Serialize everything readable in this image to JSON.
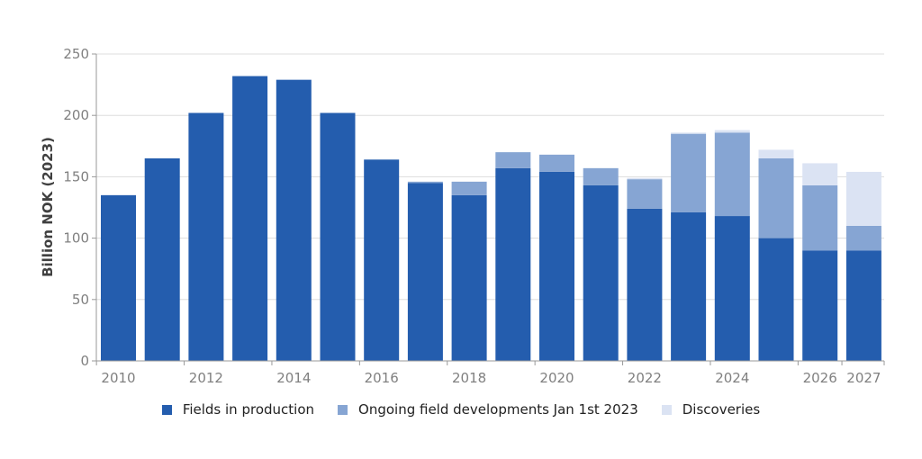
{
  "chart_data": {
    "type": "bar",
    "stacked": true,
    "title": "",
    "xlabel": "",
    "ylabel": "Billion NOK (2023)",
    "ylim": [
      0,
      250
    ],
    "yticks": [
      "0",
      "50",
      "100",
      "150",
      "200",
      "250"
    ],
    "xticks": [
      "2010",
      "2012",
      "2014",
      "2016",
      "2018",
      "2020",
      "2022",
      "2024",
      "2026",
      "2027"
    ],
    "grid": true,
    "legend_position": "bottom",
    "categories": [
      "2010",
      "2011",
      "2012",
      "2013",
      "2014",
      "2015",
      "2016",
      "2017",
      "2018",
      "2019",
      "2020",
      "2021",
      "2022",
      "2023",
      "2024",
      "2025",
      "2026",
      "2027"
    ],
    "series": [
      {
        "name": "Fields in production",
        "color": "#245dae",
        "values": [
          135,
          165,
          202,
          232,
          229,
          202,
          164,
          145,
          135,
          157,
          154,
          143,
          124,
          121,
          118,
          100,
          90,
          90
        ]
      },
      {
        "name": "Ongoing field developments Jan 1st 2023",
        "color": "#86a5d3",
        "values": [
          0,
          0,
          0,
          0,
          0,
          0,
          0,
          1,
          11,
          13,
          14,
          14,
          24,
          64,
          68,
          65,
          53,
          20
        ]
      },
      {
        "name": "Discoveries",
        "color": "#dbe3f3",
        "values": [
          0,
          0,
          0,
          0,
          0,
          0,
          0,
          0,
          0,
          0,
          0,
          0,
          1,
          1,
          2,
          7,
          18,
          44
        ]
      }
    ]
  }
}
